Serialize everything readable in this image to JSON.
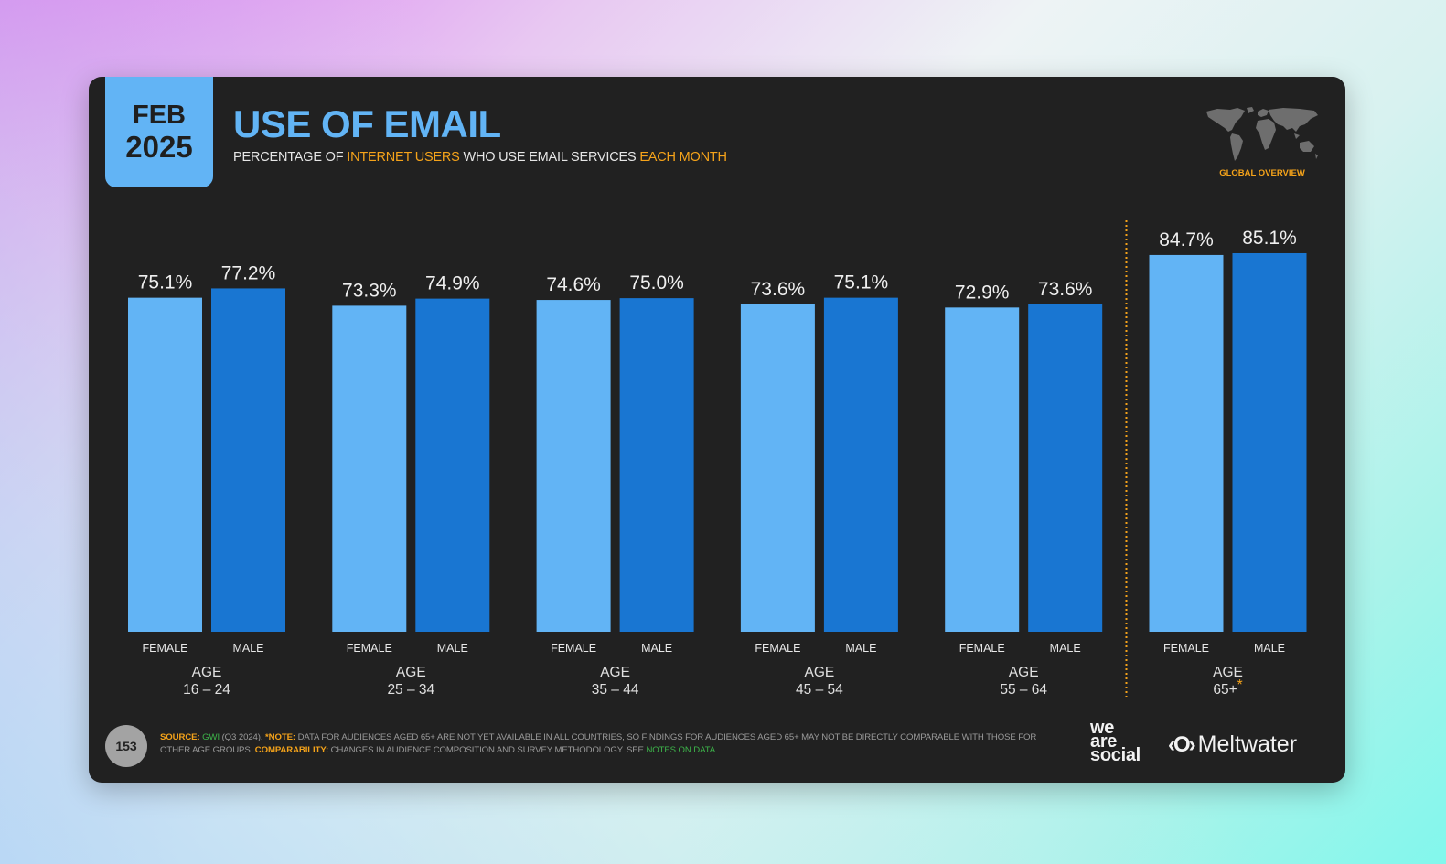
{
  "header": {
    "date_month": "FEB",
    "date_year": "2025",
    "title": "USE OF EMAIL",
    "subtitle_parts": [
      {
        "text": "PERCENTAGE OF ",
        "highlight": false
      },
      {
        "text": "INTERNET USERS",
        "highlight": true
      },
      {
        "text": " WHO USE EMAIL SERVICES ",
        "highlight": false
      },
      {
        "text": "EACH MONTH",
        "highlight": true
      }
    ],
    "region_label": "GLOBAL OVERVIEW",
    "region_icon": "world-map-icon"
  },
  "colors": {
    "female": "#62b4f5",
    "male": "#1976d2",
    "accent": "#f5a31a",
    "link": "#3db54a",
    "card": "#212121"
  },
  "chart_data": {
    "type": "bar",
    "title": "USE OF EMAIL",
    "subtitle": "PERCENTAGE OF INTERNET USERS WHO USE EMAIL SERVICES EACH MONTH",
    "xlabel": "",
    "ylabel": "",
    "ylim": [
      0,
      100
    ],
    "grid": false,
    "value_suffix": "%",
    "group_prefix": "AGE",
    "categories": [
      "16 – 24",
      "25 – 34",
      "35 – 44",
      "45 – 54",
      "55 – 64",
      "65+"
    ],
    "category_markers": [
      "",
      "",
      "",
      "",
      "",
      "*"
    ],
    "series": [
      {
        "name": "FEMALE",
        "values": [
          75.1,
          73.3,
          74.6,
          73.6,
          72.9,
          84.7
        ]
      },
      {
        "name": "MALE",
        "values": [
          77.2,
          74.9,
          75.0,
          75.1,
          73.6,
          85.1
        ]
      }
    ],
    "separator_before_category": "65+"
  },
  "footer": {
    "page_number": "153",
    "source_label": "SOURCE:",
    "source_name": "GWI",
    "source_detail": " (Q3 2024). ",
    "note_label": "*NOTE:",
    "note_text": " DATA FOR AUDIENCES AGED 65+ ARE NOT YET AVAILABLE IN ALL COUNTRIES, SO FINDINGS FOR AUDIENCES AGED 65+ MAY NOT BE DIRECTLY COMPARABLE WITH THOSE FOR OTHER AGE GROUPS. ",
    "comparability_label": "COMPARABILITY:",
    "comparability_text": " CHANGES IN AUDIENCE COMPOSITION AND SURVEY METHODOLOGY. SEE ",
    "notes_link": "NOTES ON DATA",
    "end": ".",
    "logo_1_lines": [
      "we",
      "are",
      "social"
    ],
    "logo_2_mark": "‹O›",
    "logo_2_text": "Meltwater"
  }
}
